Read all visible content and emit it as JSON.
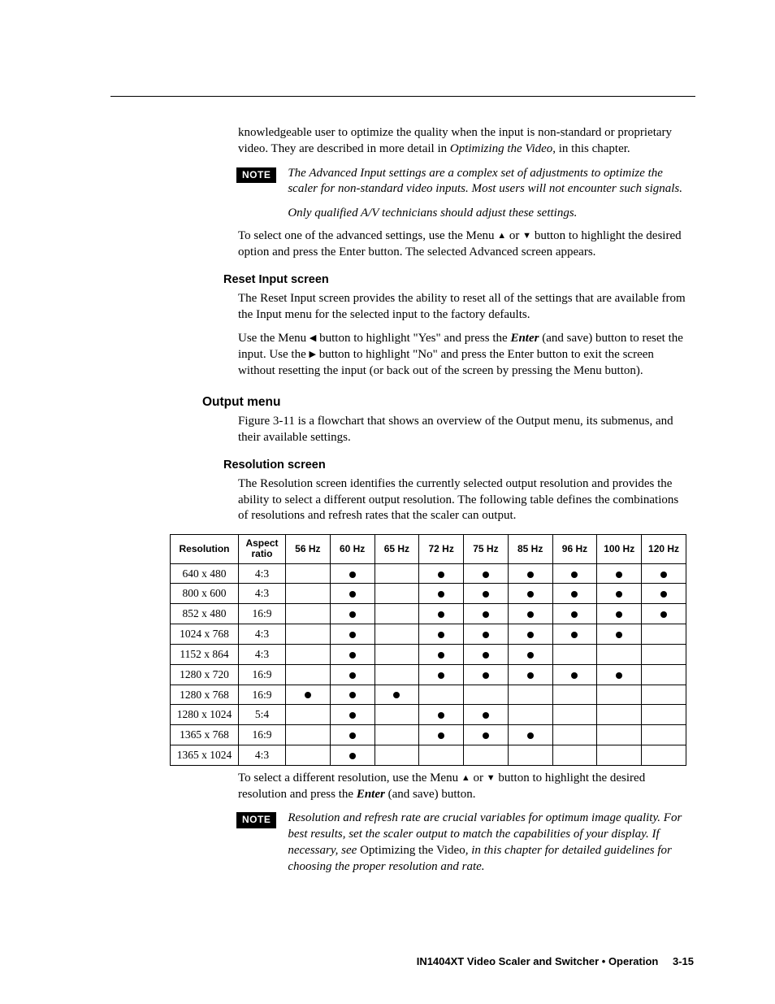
{
  "para_intro": "knowledgeable user to optimize the quality when the input is non-standard or proprietary video.  They are described in more detail in ",
  "para_intro_ital": "Optimizing the Video",
  "para_intro_tail": ", in this chapter.",
  "note1": {
    "label": "NOTE",
    "line1": "The Advanced Input settings are a complex set of adjustments to optimize the scaler for non-standard video inputs.  Most users will not encounter such signals.",
    "line2": "Only qualified A/V technicians should adjust these settings."
  },
  "para_select_adv_a": "To select one of the advanced settings, use the Menu ",
  "para_select_adv_b": " or ",
  "para_select_adv_c": " button to highlight the desired option and press the Enter button.  The selected Advanced screen appears.",
  "h_reset": "Reset Input screen",
  "para_reset1": "The Reset Input screen provides the ability to reset all of the settings that are available from the Input menu for the selected input to the factory defaults.",
  "para_reset2_a": "Use the Menu ",
  "para_reset2_b": " button to highlight \"Yes\" and press the ",
  "para_reset2_enter": "Enter",
  "para_reset2_c": " (and save) button to reset the input.  Use the ",
  "para_reset2_d": " button to highlight \"No\" and press the Enter button to exit the screen without resetting the input (or back out of the screen by pressing the Menu button).",
  "h_output": "Output menu",
  "para_output": "Figure 3-11 is a flowchart that shows an overview of the Output menu, its submenus, and their available settings.",
  "h_resolution": "Resolution screen",
  "para_resolution": "The Resolution screen identifies the currently selected output resolution and provides the ability to select a different output resolution.  The following table defines the combinations of resolutions and refresh rates that the scaler can output.",
  "table": {
    "headers": [
      "Resolution",
      "Aspect ratio",
      "56 Hz",
      "60 Hz",
      "65 Hz",
      "72 Hz",
      "75 Hz",
      "85 Hz",
      "96 Hz",
      "100 Hz",
      "120 Hz"
    ],
    "rows": [
      {
        "res": "640 x 480",
        "asp": "4:3",
        "hz": [
          0,
          1,
          0,
          1,
          1,
          1,
          1,
          1,
          1
        ]
      },
      {
        "res": "800 x 600",
        "asp": "4:3",
        "hz": [
          0,
          1,
          0,
          1,
          1,
          1,
          1,
          1,
          1
        ]
      },
      {
        "res": "852 x 480",
        "asp": "16:9",
        "hz": [
          0,
          1,
          0,
          1,
          1,
          1,
          1,
          1,
          1
        ]
      },
      {
        "res": "1024 x 768",
        "asp": "4:3",
        "hz": [
          0,
          1,
          0,
          1,
          1,
          1,
          1,
          1,
          0
        ]
      },
      {
        "res": "1152 x 864",
        "asp": "4:3",
        "hz": [
          0,
          1,
          0,
          1,
          1,
          1,
          0,
          0,
          0
        ]
      },
      {
        "res": "1280 x 720",
        "asp": "16:9",
        "hz": [
          0,
          1,
          0,
          1,
          1,
          1,
          1,
          1,
          0
        ]
      },
      {
        "res": "1280 x 768",
        "asp": "16:9",
        "hz": [
          1,
          1,
          1,
          0,
          0,
          0,
          0,
          0,
          0
        ]
      },
      {
        "res": "1280 x 1024",
        "asp": "5:4",
        "hz": [
          0,
          1,
          0,
          1,
          1,
          0,
          0,
          0,
          0
        ]
      },
      {
        "res": "1365 x 768",
        "asp": "16:9",
        "hz": [
          0,
          1,
          0,
          1,
          1,
          1,
          0,
          0,
          0
        ]
      },
      {
        "res": "1365 x 1024",
        "asp": "4:3",
        "hz": [
          0,
          1,
          0,
          0,
          0,
          0,
          0,
          0,
          0
        ]
      }
    ]
  },
  "para_select_res_a": "To select a different resolution, use the Menu ",
  "para_select_res_b": " or ",
  "para_select_res_c": " button to highlight the desired resolution and press the ",
  "para_select_res_enter": "Enter",
  "para_select_res_d": " (and save) button.",
  "note2": {
    "label": "NOTE",
    "line_a": "Resolution and refresh rate are crucial variables for optimum image quality.  For best results, set the scaler output to match the capabilities of your display.  If necessary, see ",
    "line_roman": "Optimizing the Video",
    "line_b": ", in this chapter for detailed guidelines for choosing the proper resolution and rate."
  },
  "glyphs": {
    "up": "▲",
    "down": "▼",
    "left": "◀",
    "right": "▶"
  },
  "footer": {
    "title": "IN1404XT Video Scaler and Switcher • Operation",
    "page": "3-15"
  }
}
